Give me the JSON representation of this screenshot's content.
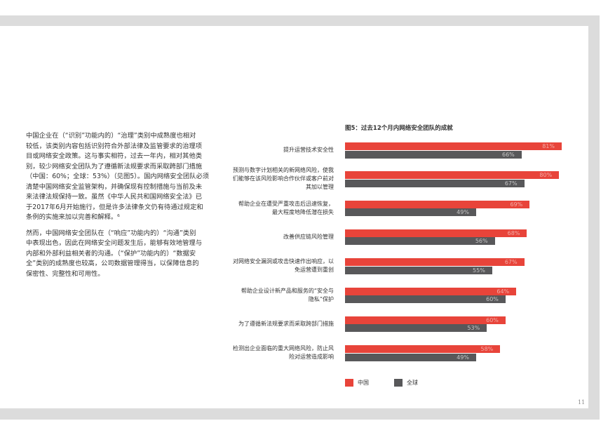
{
  "body": {
    "paragraphs": [
      [
        "中国企业在（“识别”功能内的）“治理”类别中成熟度也相对",
        "较低，该类别内容包括识别符合外部法律及监管要求的治理项",
        "目或网络安全政策。这与事实相符，过去一年内，相对其他类",
        "别，较少网络安全团队为了遵循新法规要求而采取跨部门措施",
        "（中国：60%；全球：53%）（见图5）。国内网络安全团队必须",
        "清楚中国网络安全监管架构，并确保现有控制措施与当前及未",
        "来法律法规保持一致。虽然《中华人民共和国网络安全法》已",
        "于2017年6月开始施行，但是许多法律条文仍有待通过规定和",
        "条例的实施来加以完善和解释。⁶"
      ],
      [
        "然而，中国网络安全团队在（“响应”功能内的）“沟通”类别",
        "中表现出色，因此在网络安全问题发生后，能够有效地管理与",
        "内部和外部利益相关者的沟通。（“保护”功能内的）“数据安",
        "全”类别的成熟度也较高，公司数据管理得当，以保障信息的",
        "保密性、完整性和可用性。"
      ]
    ]
  },
  "chart_data": {
    "type": "bar",
    "orientation": "horizontal",
    "title": "图5：过去12个月内网络安全团队的成就",
    "categories": [
      "提升运营技术安全性",
      "预测与数字计划相关的新网络风险，使我\n们能够在该风险影响合作伙伴或客户前对\n其加以管理",
      "帮助企业在遭受严重攻击后迅速恢复，\n最大程度地降低潜在损失",
      "改善供应链风险管理",
      "对网络安全漏洞或攻击快速作出响应，以\n免运营遭到重创",
      "帮助企业设计新产品和服务的“安全与\n隐私”保护",
      "为了遵循新法规要求而采取跨部门措施",
      "检测出企业面临的重大网络风险，防止风\n险对运营造成影响"
    ],
    "series": [
      {
        "name": "中国",
        "color": "#e8443a",
        "values": [
          81,
          80,
          69,
          68,
          67,
          64,
          60,
          58
        ],
        "labels": [
          "81%",
          "80%",
          "69%",
          "68%",
          "67%",
          "64%",
          "60%",
          "58%"
        ]
      },
      {
        "name": "全球",
        "color": "#58585a",
        "values": [
          66,
          67,
          49,
          56,
          55,
          60,
          53,
          49
        ],
        "labels": [
          "66%",
          "67%",
          "49%",
          "56%",
          "55%",
          "60%",
          "53%",
          "49%"
        ]
      }
    ],
    "unit": "%",
    "legend": "bottom-left",
    "grid": false
  },
  "page_number": "11"
}
